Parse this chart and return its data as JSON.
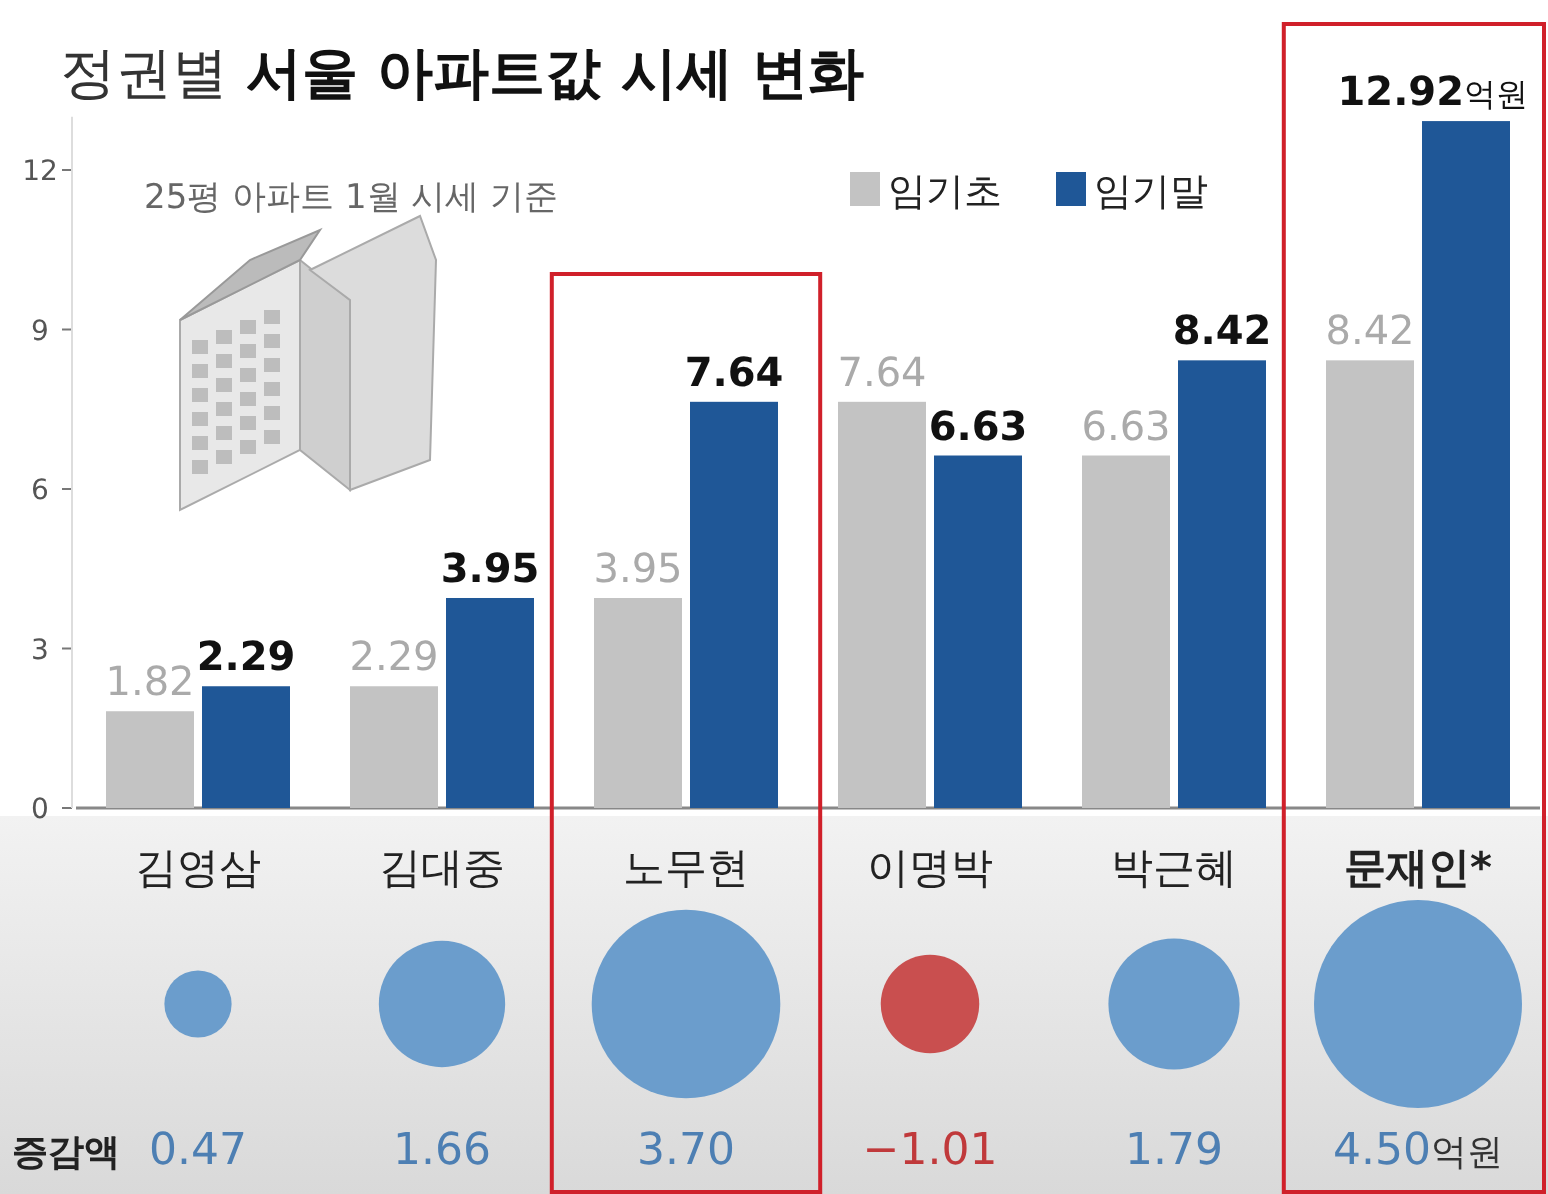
{
  "chart_data": [
    {
      "type": "bar",
      "title": "정권별 서울 아파트값 시세 변화",
      "subtitle": "25평 아파트 1월 시세 기준",
      "categories": [
        "김영삼",
        "김대중",
        "노무현",
        "이명박",
        "박근혜",
        "문재인*"
      ],
      "series": [
        {
          "name": "임기초",
          "color": "#c3c3c3",
          "values": [
            1.82,
            2.29,
            3.95,
            7.64,
            6.63,
            8.42
          ],
          "value_labels": [
            "1.82",
            "2.29",
            "3.95",
            "7.64",
            "6.63",
            "8.42"
          ]
        },
        {
          "name": "임기말",
          "color": "#1f5797",
          "values": [
            2.29,
            3.95,
            7.64,
            6.63,
            8.42,
            12.92
          ],
          "value_labels": [
            "2.29",
            "3.95",
            "7.64",
            "6.63",
            "8.42",
            "12.92억원"
          ]
        }
      ],
      "ylim": [
        0,
        13
      ],
      "yticks": [
        0,
        3,
        6,
        9,
        12
      ],
      "legend": "top right"
    },
    {
      "type": "other",
      "ylabel": "증감액",
      "categories": [
        null,
        null,
        null,
        null,
        null,
        null
      ],
      "values": [
        0.47,
        1.66,
        3.7,
        -1.01,
        1.79,
        4.5
      ],
      "value_labels": [
        "0.47",
        "1.66",
        "3.70",
        "−1.01",
        "1.79",
        "4.50억원"
      ],
      "colors": [
        "#6b9dcc",
        "#6b9dcc",
        "#6b9dcc",
        "#c94f4f",
        "#6b9dcc",
        "#6b9dcc"
      ]
    }
  ]
}
